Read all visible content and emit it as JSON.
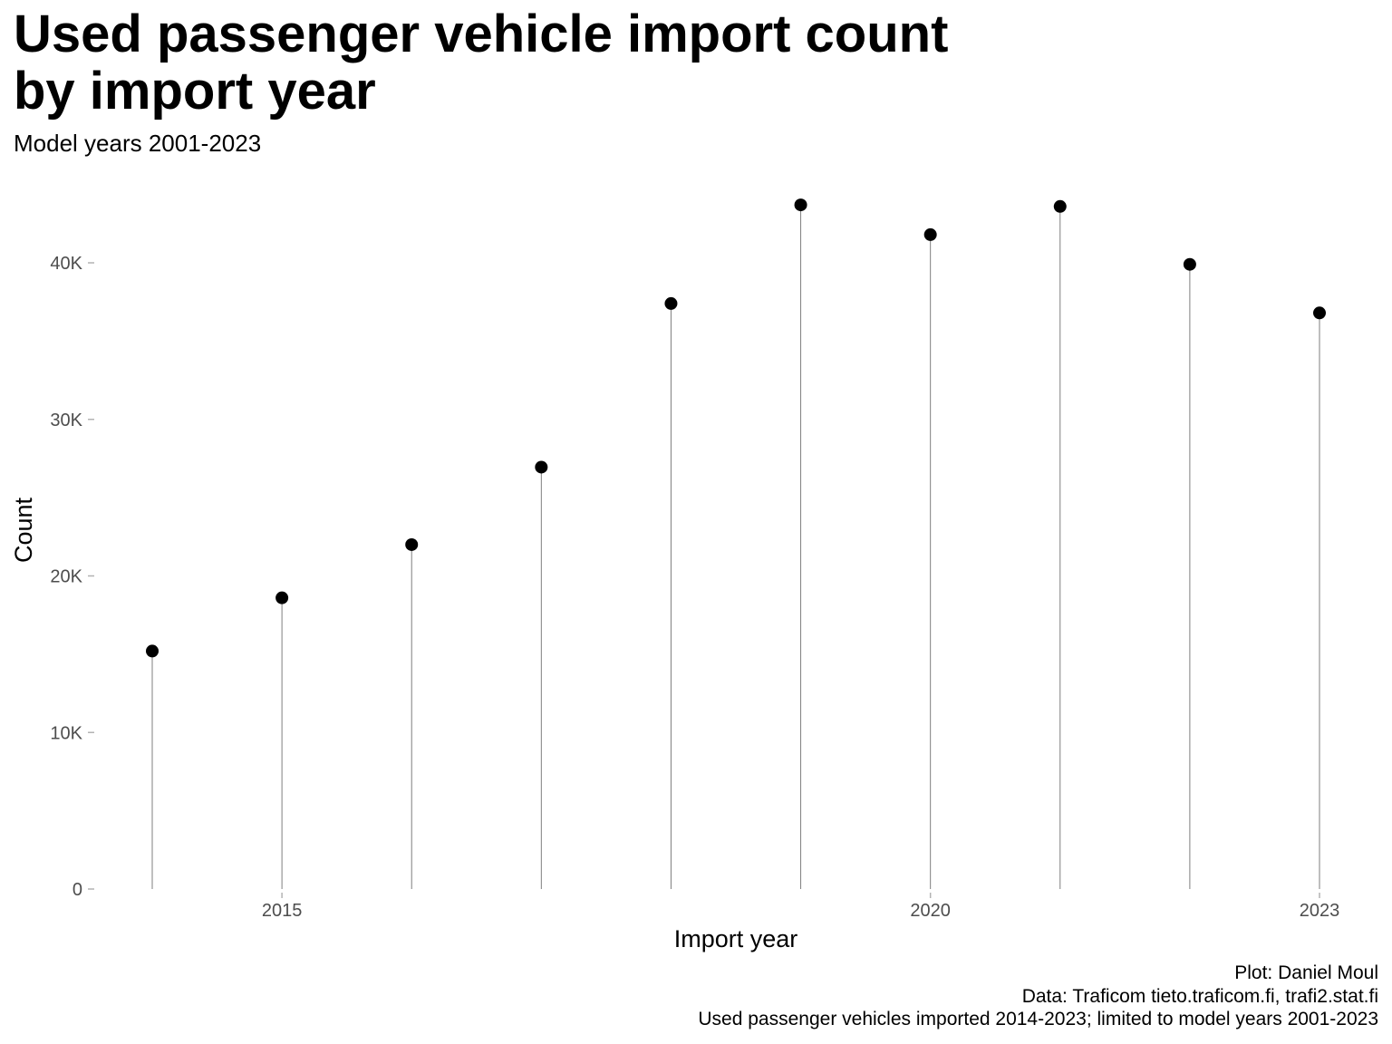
{
  "title_line1": "Used passenger vehicle import count",
  "title_line2": "by import year",
  "subtitle": "Model years 2001-2023",
  "caption": {
    "line1": "Plot: Daniel Moul",
    "line2": "Data: Traficom tieto.traficom.fi, trafi2.stat.fi",
    "line3": "Used passenger vehicles imported 2014-2023; limited to model years 2001-2023"
  },
  "chart_data": {
    "type": "scatter",
    "style": "lollipop",
    "title": "Used passenger vehicle import count by import year",
    "subtitle": "Model years 2001-2023",
    "xlabel": "Import year",
    "ylabel": "Count",
    "x": [
      2014,
      2015,
      2016,
      2017,
      2018,
      2019,
      2020,
      2021,
      2022,
      2023
    ],
    "y": [
      15200,
      18600,
      22000,
      26950,
      37400,
      43700,
      41800,
      43600,
      39900,
      36800
    ],
    "x_ticks": [
      2015,
      2020,
      2023
    ],
    "x_tick_labels": [
      "2015",
      "2020",
      "2023"
    ],
    "y_ticks": [
      0,
      10000,
      20000,
      30000,
      40000
    ],
    "y_tick_labels": [
      "0",
      "10K",
      "20K",
      "30K",
      "40K"
    ],
    "xlim": [
      2013.1,
      2023.2
    ],
    "ylim": [
      0,
      45000
    ],
    "grid": false,
    "legend": "none",
    "colors": {
      "point": "#000000",
      "segment": "#7f7f7f",
      "tick": "#b3b3b3",
      "tick_label": "#4d4d4d"
    }
  }
}
